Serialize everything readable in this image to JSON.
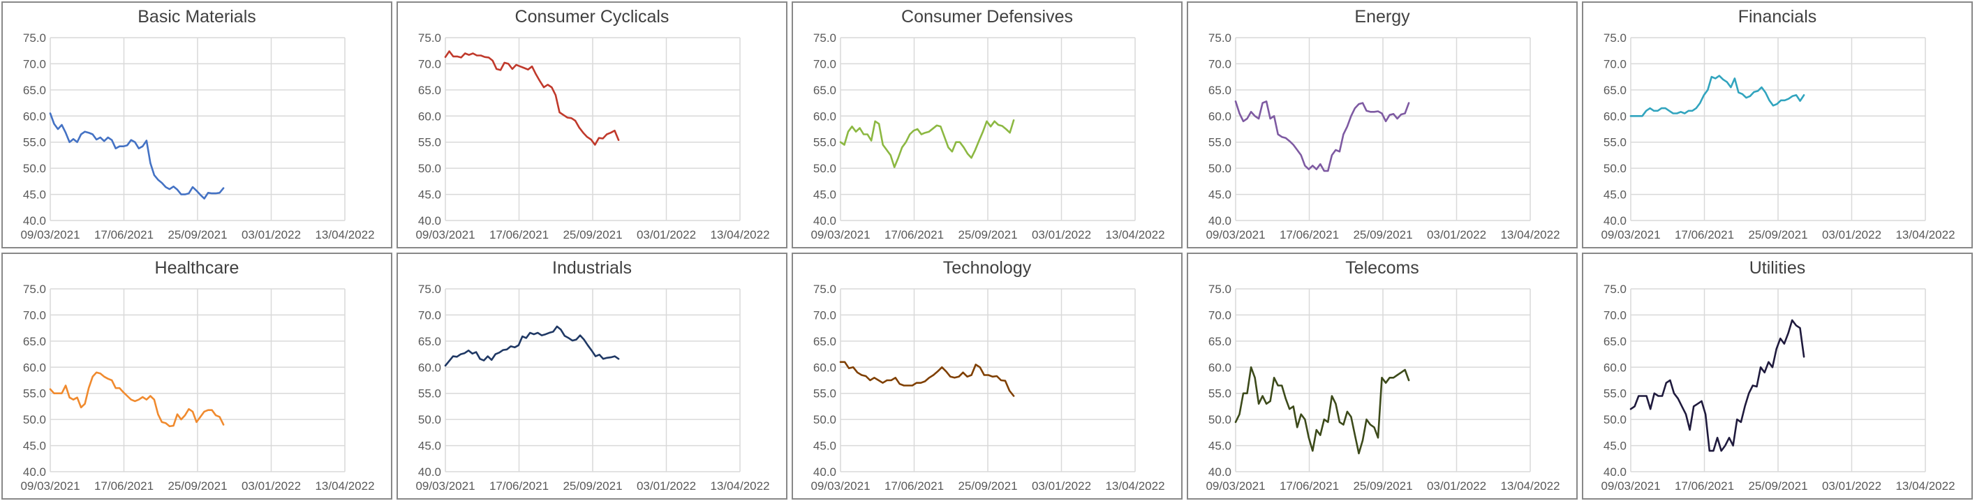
{
  "chart_data": [
    {
      "type": "line",
      "title": "Basic Materials",
      "color": "#4472C4",
      "ylim": [
        40,
        75
      ],
      "yticks": [
        "40.0",
        "45.0",
        "50.0",
        "55.0",
        "60.0",
        "65.0",
        "70.0",
        "75.0"
      ],
      "xticks": [
        "09/03/2021",
        "17/06/2021",
        "25/09/2021",
        "03/01/2022",
        "13/04/2022"
      ],
      "grid": true,
      "values": [
        60.5,
        58.5,
        57.5,
        58.3,
        56.8,
        55,
        55.6,
        55,
        56.5,
        57,
        56.8,
        56.5,
        55.5,
        55.9,
        55.2,
        55.9,
        55.4,
        53.8,
        54.2,
        54.2,
        54.4,
        55.4,
        55,
        53.8,
        54.2,
        55.3,
        51,
        48.7,
        47.8,
        47.2,
        46.4,
        46,
        46.5,
        45.9,
        45,
        45,
        45.2,
        46.4,
        45.7,
        44.9,
        44.2,
        45.3,
        45.2,
        45.2,
        45.3,
        46.2
      ]
    },
    {
      "type": "line",
      "title": "Consumer Cyclicals",
      "color": "#C0392B",
      "ylim": [
        40,
        75
      ],
      "yticks": [
        "40.0",
        "45.0",
        "50.0",
        "55.0",
        "60.0",
        "65.0",
        "70.0",
        "75.0"
      ],
      "xticks": [
        "09/03/2021",
        "17/06/2021",
        "25/09/2021",
        "03/01/2022",
        "13/04/2022"
      ],
      "grid": true,
      "values": [
        71.3,
        72.4,
        71.4,
        71.4,
        71.2,
        72,
        71.7,
        72,
        71.6,
        71.6,
        71.3,
        71.2,
        70.6,
        69,
        68.8,
        70.2,
        70,
        69,
        69.8,
        69.5,
        69.2,
        68.9,
        69.5,
        68,
        66.7,
        65.5,
        66,
        65.5,
        64,
        60.7,
        60.2,
        59.7,
        59.6,
        59.1,
        57.8,
        56.8,
        56,
        55.5,
        54.5,
        55.8,
        55.7,
        56.5,
        56.8,
        57.2,
        55.4
      ]
    },
    {
      "type": "line",
      "title": "Consumer  Defensives",
      "color": "#8CB842",
      "ylim": [
        40,
        75
      ],
      "yticks": [
        "40.0",
        "45.0",
        "50.0",
        "55.0",
        "60.0",
        "65.0",
        "70.0",
        "75.0"
      ],
      "xticks": [
        "09/03/2021",
        "17/06/2021",
        "25/09/2021",
        "03/01/2022",
        "13/04/2022"
      ],
      "grid": true,
      "values": [
        55,
        54.5,
        57,
        58,
        57,
        57.7,
        56.5,
        56.5,
        55.3,
        59,
        58.5,
        54.5,
        53.5,
        52.5,
        50.2,
        52,
        54,
        55,
        56.5,
        57.2,
        57.5,
        56.5,
        56.8,
        57,
        57.6,
        58.2,
        58,
        56,
        54,
        53.2,
        55,
        55,
        54,
        52.8,
        52,
        53.5,
        55.3,
        57,
        59,
        58,
        59,
        58.3,
        58.1,
        57.5,
        56.8,
        59.2
      ]
    },
    {
      "type": "line",
      "title": "Energy",
      "color": "#7E5AA2",
      "ylim": [
        40,
        75
      ],
      "yticks": [
        "40.0",
        "45.0",
        "50.0",
        "55.0",
        "60.0",
        "65.0",
        "70.0",
        "75.0"
      ],
      "xticks": [
        "09/03/2021",
        "17/06/2021",
        "25/09/2021",
        "03/01/2022",
        "13/04/2022"
      ],
      "grid": true,
      "values": [
        62.8,
        60.5,
        59,
        59.5,
        60.8,
        60,
        59.5,
        62.5,
        62.8,
        59.5,
        60,
        56.5,
        56,
        55.8,
        55.2,
        54.5,
        53.5,
        52.5,
        50.5,
        49.8,
        50.5,
        49.8,
        50.8,
        49.5,
        49.5,
        52.5,
        53.5,
        53.2,
        56.5,
        58,
        60,
        61.5,
        62.3,
        62.5,
        61,
        60.8,
        60.8,
        60.9,
        60.5,
        59,
        60.2,
        60.4,
        59.5,
        60.3,
        60.5,
        62.5
      ]
    },
    {
      "type": "line",
      "title": "Financials",
      "color": "#31A4BE",
      "ylim": [
        40,
        75
      ],
      "yticks": [
        "40.0",
        "45.0",
        "50.0",
        "55.0",
        "60.0",
        "65.0",
        "70.0",
        "75.0"
      ],
      "xticks": [
        "09/03/2021",
        "17/06/2021",
        "25/09/2021",
        "03/01/2022",
        "13/04/2022"
      ],
      "grid": true,
      "values": [
        60,
        60,
        60,
        60,
        61,
        61.5,
        61,
        61,
        61.5,
        61.5,
        61,
        60.5,
        60.5,
        60.8,
        60.5,
        61,
        61,
        61.5,
        62.5,
        64,
        65,
        67.5,
        67.2,
        67.7,
        67,
        66.5,
        65.5,
        67.2,
        64.5,
        64.2,
        63.5,
        63.8,
        64.6,
        64.8,
        65.5,
        64.5,
        63,
        62,
        62.3,
        63,
        63,
        63.3,
        63.8,
        64,
        62.9,
        64
      ]
    },
    {
      "type": "line",
      "title": "Healthcare",
      "color": "#F08A2E",
      "ylim": [
        40,
        75
      ],
      "yticks": [
        "40.0",
        "45.0",
        "50.0",
        "55.0",
        "60.0",
        "65.0",
        "70.0",
        "75.0"
      ],
      "xticks": [
        "09/03/2021",
        "17/06/2021",
        "25/09/2021",
        "03/01/2022",
        "13/04/2022"
      ],
      "grid": true,
      "values": [
        55.8,
        55,
        55,
        55,
        56.5,
        54.2,
        53.8,
        54.2,
        52.3,
        53,
        56,
        58.2,
        59,
        58.8,
        58.2,
        57.8,
        57.5,
        56,
        56,
        55.2,
        54.5,
        53.8,
        53.5,
        53.8,
        54.3,
        53.8,
        54.5,
        53.8,
        51,
        49.5,
        49.3,
        48.7,
        48.8,
        51,
        50,
        50.8,
        52,
        51.5,
        49.5,
        50.5,
        51.5,
        51.8,
        51.8,
        50.8,
        50.5,
        49
      ]
    },
    {
      "type": "line",
      "title": "Industrials",
      "color": "#1F3864",
      "ylim": [
        40,
        75
      ],
      "yticks": [
        "40.0",
        "45.0",
        "50.0",
        "55.0",
        "60.0",
        "65.0",
        "70.0",
        "75.0"
      ],
      "xticks": [
        "09/03/2021",
        "17/06/2021",
        "25/09/2021",
        "03/01/2022",
        "13/04/2022"
      ],
      "grid": true,
      "values": [
        60.3,
        61.2,
        62.1,
        62,
        62.5,
        62.7,
        63.2,
        62.6,
        62.9,
        61.6,
        61.3,
        62.1,
        61.4,
        62.5,
        62.8,
        63.3,
        63.4,
        64,
        63.8,
        64.2,
        65.9,
        65.6,
        66.6,
        66.3,
        66.6,
        66.1,
        66.3,
        66.6,
        66.8,
        67.8,
        67.2,
        66,
        65.6,
        65.1,
        65.3,
        66.1,
        65.3,
        64.2,
        63.2,
        62.1,
        62.4,
        61.6,
        61.8,
        61.9,
        62.1,
        61.6
      ]
    },
    {
      "type": "line",
      "title": "Technology",
      "color": "#7F3F00",
      "ylim": [
        40,
        75
      ],
      "yticks": [
        "40.0",
        "45.0",
        "50.0",
        "55.0",
        "60.0",
        "65.0",
        "70.0",
        "75.0"
      ],
      "xticks": [
        "09/03/2021",
        "17/06/2021",
        "25/09/2021",
        "03/01/2022",
        "13/04/2022"
      ],
      "grid": true,
      "values": [
        61,
        61,
        59.8,
        60,
        59,
        58.5,
        58.3,
        57.5,
        58,
        57.5,
        57,
        57.5,
        57.5,
        58,
        56.8,
        56.5,
        56.5,
        56.5,
        57,
        57,
        57.3,
        58,
        58.5,
        59.2,
        60,
        59.2,
        58.2,
        58,
        58.2,
        59,
        58.2,
        58.5,
        60.5,
        60,
        58.5,
        58.5,
        58.2,
        58.3,
        57.5,
        57.4,
        55.5,
        54.5
      ]
    },
    {
      "type": "line",
      "title": "Telecoms",
      "color": "#3C4A1A",
      "ylim": [
        40,
        75
      ],
      "yticks": [
        "40.0",
        "45.0",
        "50.0",
        "55.0",
        "60.0",
        "65.0",
        "70.0",
        "75.0"
      ],
      "xticks": [
        "09/03/2021",
        "17/06/2021",
        "25/09/2021",
        "03/01/2022",
        "13/04/2022"
      ],
      "grid": true,
      "values": [
        49.5,
        51,
        55,
        55,
        60,
        58,
        53,
        54.5,
        53,
        53.5,
        58,
        56.5,
        56.5,
        54,
        52,
        52.5,
        48.5,
        51,
        50,
        46.5,
        44,
        48,
        47,
        50,
        49.5,
        54.5,
        53,
        49.5,
        49,
        51.5,
        50.5,
        47,
        43.5,
        46,
        50,
        49,
        48.5,
        46.5,
        58,
        57,
        58,
        58,
        58.5,
        59,
        59.5,
        57.5
      ]
    },
    {
      "type": "line",
      "title": "Utilities",
      "color": "#1F1A3D",
      "ylim": [
        40,
        75
      ],
      "yticks": [
        "40.0",
        "45.0",
        "50.0",
        "55.0",
        "60.0",
        "65.0",
        "70.0",
        "75.0"
      ],
      "xticks": [
        "09/03/2021",
        "17/06/2021",
        "25/09/2021",
        "03/01/2022",
        "13/04/2022"
      ],
      "grid": true,
      "values": [
        52,
        52.5,
        54.5,
        54.5,
        54.5,
        52,
        55,
        54.5,
        54.5,
        57,
        57.5,
        55,
        54,
        52.5,
        51,
        48,
        52.5,
        53,
        53.5,
        51,
        44,
        44,
        46.5,
        44,
        45,
        46.5,
        45,
        50,
        49.5,
        52.5,
        55,
        56.5,
        56.3,
        60,
        59,
        61,
        60,
        63.5,
        65.5,
        64.5,
        66.5,
        69,
        68,
        67.5,
        62
      ]
    }
  ]
}
